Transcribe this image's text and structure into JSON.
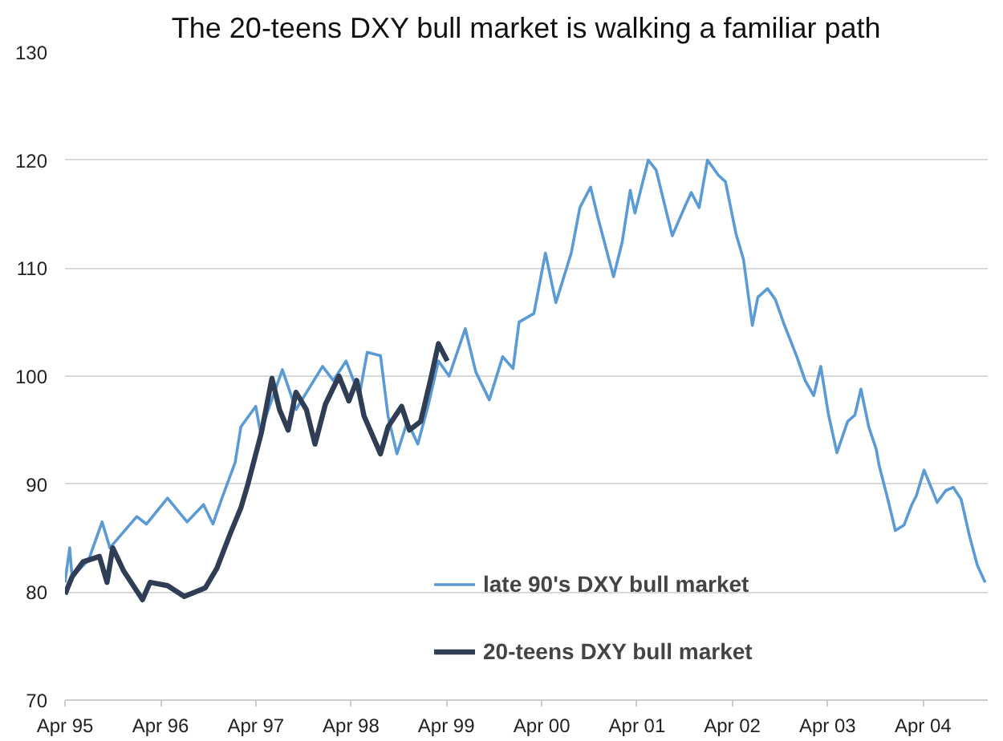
{
  "chart_data": {
    "type": "line",
    "title": "The 20-teens DXY bull market is walking a familiar path",
    "xlim": [
      "1995-04-01",
      "2004-12-05"
    ],
    "xticks": [
      {
        "value": "1995-04-01",
        "label": "Apr 95"
      },
      {
        "value": "1996-04-01",
        "label": "Apr 96"
      },
      {
        "value": "1997-04-01",
        "label": "Apr 97"
      },
      {
        "value": "1998-04-01",
        "label": "Apr 98"
      },
      {
        "value": "1999-04-01",
        "label": "Apr 99"
      },
      {
        "value": "2000-04-01",
        "label": "Apr 00"
      },
      {
        "value": "2001-04-01",
        "label": "Apr 01"
      },
      {
        "value": "2002-04-01",
        "label": "Apr 02"
      },
      {
        "value": "2003-04-01",
        "label": "Apr 03"
      },
      {
        "value": "2004-04-01",
        "label": "Apr 04"
      }
    ],
    "ylim": [
      70,
      130
    ],
    "yticks": [
      70,
      80,
      90,
      100,
      110,
      120,
      130
    ],
    "grid": "y",
    "legend": "bottom",
    "line_style": "solid",
    "marker": "none",
    "series": [
      {
        "name": "late 90's DXY bull market",
        "color": "#5b9bd5",
        "x": [
          "1995-04-01",
          "1995-04-19",
          "1995-04-28",
          "1995-07-01",
          "1995-08-21",
          "1995-09-20",
          "1996-01-01",
          "1996-02-07",
          "1996-04-28",
          "1996-07-12",
          "1996-09-13",
          "1996-10-19",
          "1996-11-21",
          "1997-01-12",
          "1997-02-03",
          "1997-04-01",
          "1997-04-19",
          "1997-07-12",
          "1997-09-02",
          "1997-12-13",
          "1998-01-23",
          "1998-03-13",
          "1998-05-03",
          "1998-06-02",
          "1998-07-23",
          "1998-08-21",
          "1998-09-24",
          "1998-11-03",
          "1998-12-13",
          "1999-01-23",
          "1999-03-02",
          "1999-04-12",
          "1999-06-13",
          "1999-07-23",
          "1999-09-13",
          "1999-11-03",
          "1999-12-13",
          "2000-01-05",
          "2000-03-02",
          "2000-04-15",
          "2000-05-25",
          "2000-07-23",
          "2000-08-25",
          "2000-10-05",
          "2000-11-03",
          "2001-01-01",
          "2001-02-03",
          "2001-03-06",
          "2001-03-24",
          "2001-05-14",
          "2001-06-13",
          "2001-08-14",
          "2001-10-05",
          "2001-10-26",
          "2001-11-25",
          "2001-12-27",
          "2002-02-07",
          "2002-03-06",
          "2002-04-15",
          "2002-05-14",
          "2002-06-17",
          "2002-07-08",
          "2002-08-14",
          "2002-09-13",
          "2002-10-15",
          "2002-12-06",
          "2003-01-05",
          "2003-02-07",
          "2003-03-06",
          "2003-04-05",
          "2003-05-07",
          "2003-06-17",
          "2003-07-15",
          "2003-08-07",
          "2003-09-06",
          "2003-10-05",
          "2003-10-15",
          "2003-11-18",
          "2003-12-17",
          "2004-01-19",
          "2004-02-18",
          "2004-03-06",
          "2004-04-05",
          "2004-05-07",
          "2004-05-25",
          "2004-06-27",
          "2004-07-26",
          "2004-08-25",
          "2004-09-27",
          "2004-10-26",
          "2004-11-25"
        ],
        "values": [
          80.9,
          84.1,
          81.4,
          83,
          86.5,
          84.1,
          87,
          86.3,
          88.7,
          86.5,
          88.1,
          86.3,
          88.6,
          92,
          95.3,
          97.2,
          94.8,
          100.6,
          96.9,
          100.9,
          99.6,
          101.4,
          98.2,
          102.2,
          101.9,
          96.3,
          92.8,
          95.8,
          93.7,
          97.4,
          101.4,
          100,
          104.4,
          100.4,
          97.8,
          101.8,
          100.7,
          105,
          105.8,
          111.4,
          106.8,
          111.4,
          115.6,
          117.5,
          114.6,
          109.2,
          112.4,
          117.2,
          115.1,
          120,
          119.1,
          113,
          115.9,
          117,
          115.6,
          120,
          118.6,
          118,
          113.2,
          110.8,
          104.7,
          107.3,
          108.1,
          107.1,
          104.9,
          101.7,
          99.6,
          98.2,
          100.9,
          96.4,
          92.9,
          95.8,
          96.4,
          98.8,
          95.3,
          93.2,
          91.8,
          88.6,
          85.7,
          86.2,
          88.1,
          88.9,
          91.3,
          89.4,
          88.3,
          89.4,
          89.7,
          88.6,
          85.1,
          82.5,
          80.9
        ]
      },
      {
        "name": "20-teens DXY bull market",
        "color": "#2f3e54",
        "x": [
          "1995-04-01",
          "1995-04-28",
          "1995-06-09",
          "1995-08-11",
          "1995-09-09",
          "1995-10-01",
          "1995-11-11",
          "1996-01-23",
          "1996-02-21",
          "1996-04-28",
          "1996-07-01",
          "1996-09-20",
          "1996-11-03",
          "1996-12-24",
          "1997-02-03",
          "1997-03-02",
          "1997-04-23",
          "1997-06-02",
          "1997-07-01",
          "1997-08-03",
          "1997-09-02",
          "1997-10-12",
          "1997-11-14",
          "1997-12-24",
          "1998-02-14",
          "1998-03-24",
          "1998-04-23",
          "1998-05-21",
          "1998-07-23",
          "1998-08-21",
          "1998-10-12",
          "1998-11-11",
          "1998-12-24",
          "1999-02-03",
          "1999-03-02",
          "1999-04-05"
        ],
        "values": [
          79.8,
          81.4,
          82.8,
          83.3,
          80.9,
          84.1,
          82,
          79.3,
          80.9,
          80.6,
          79.6,
          80.4,
          82.2,
          85.4,
          87.8,
          90,
          94.8,
          99.8,
          96.9,
          95,
          98.5,
          96.9,
          93.7,
          97.4,
          100,
          97.7,
          99.6,
          96.3,
          92.8,
          95.3,
          97.2,
          95,
          95.8,
          100,
          103,
          101.4
        ]
      }
    ]
  }
}
